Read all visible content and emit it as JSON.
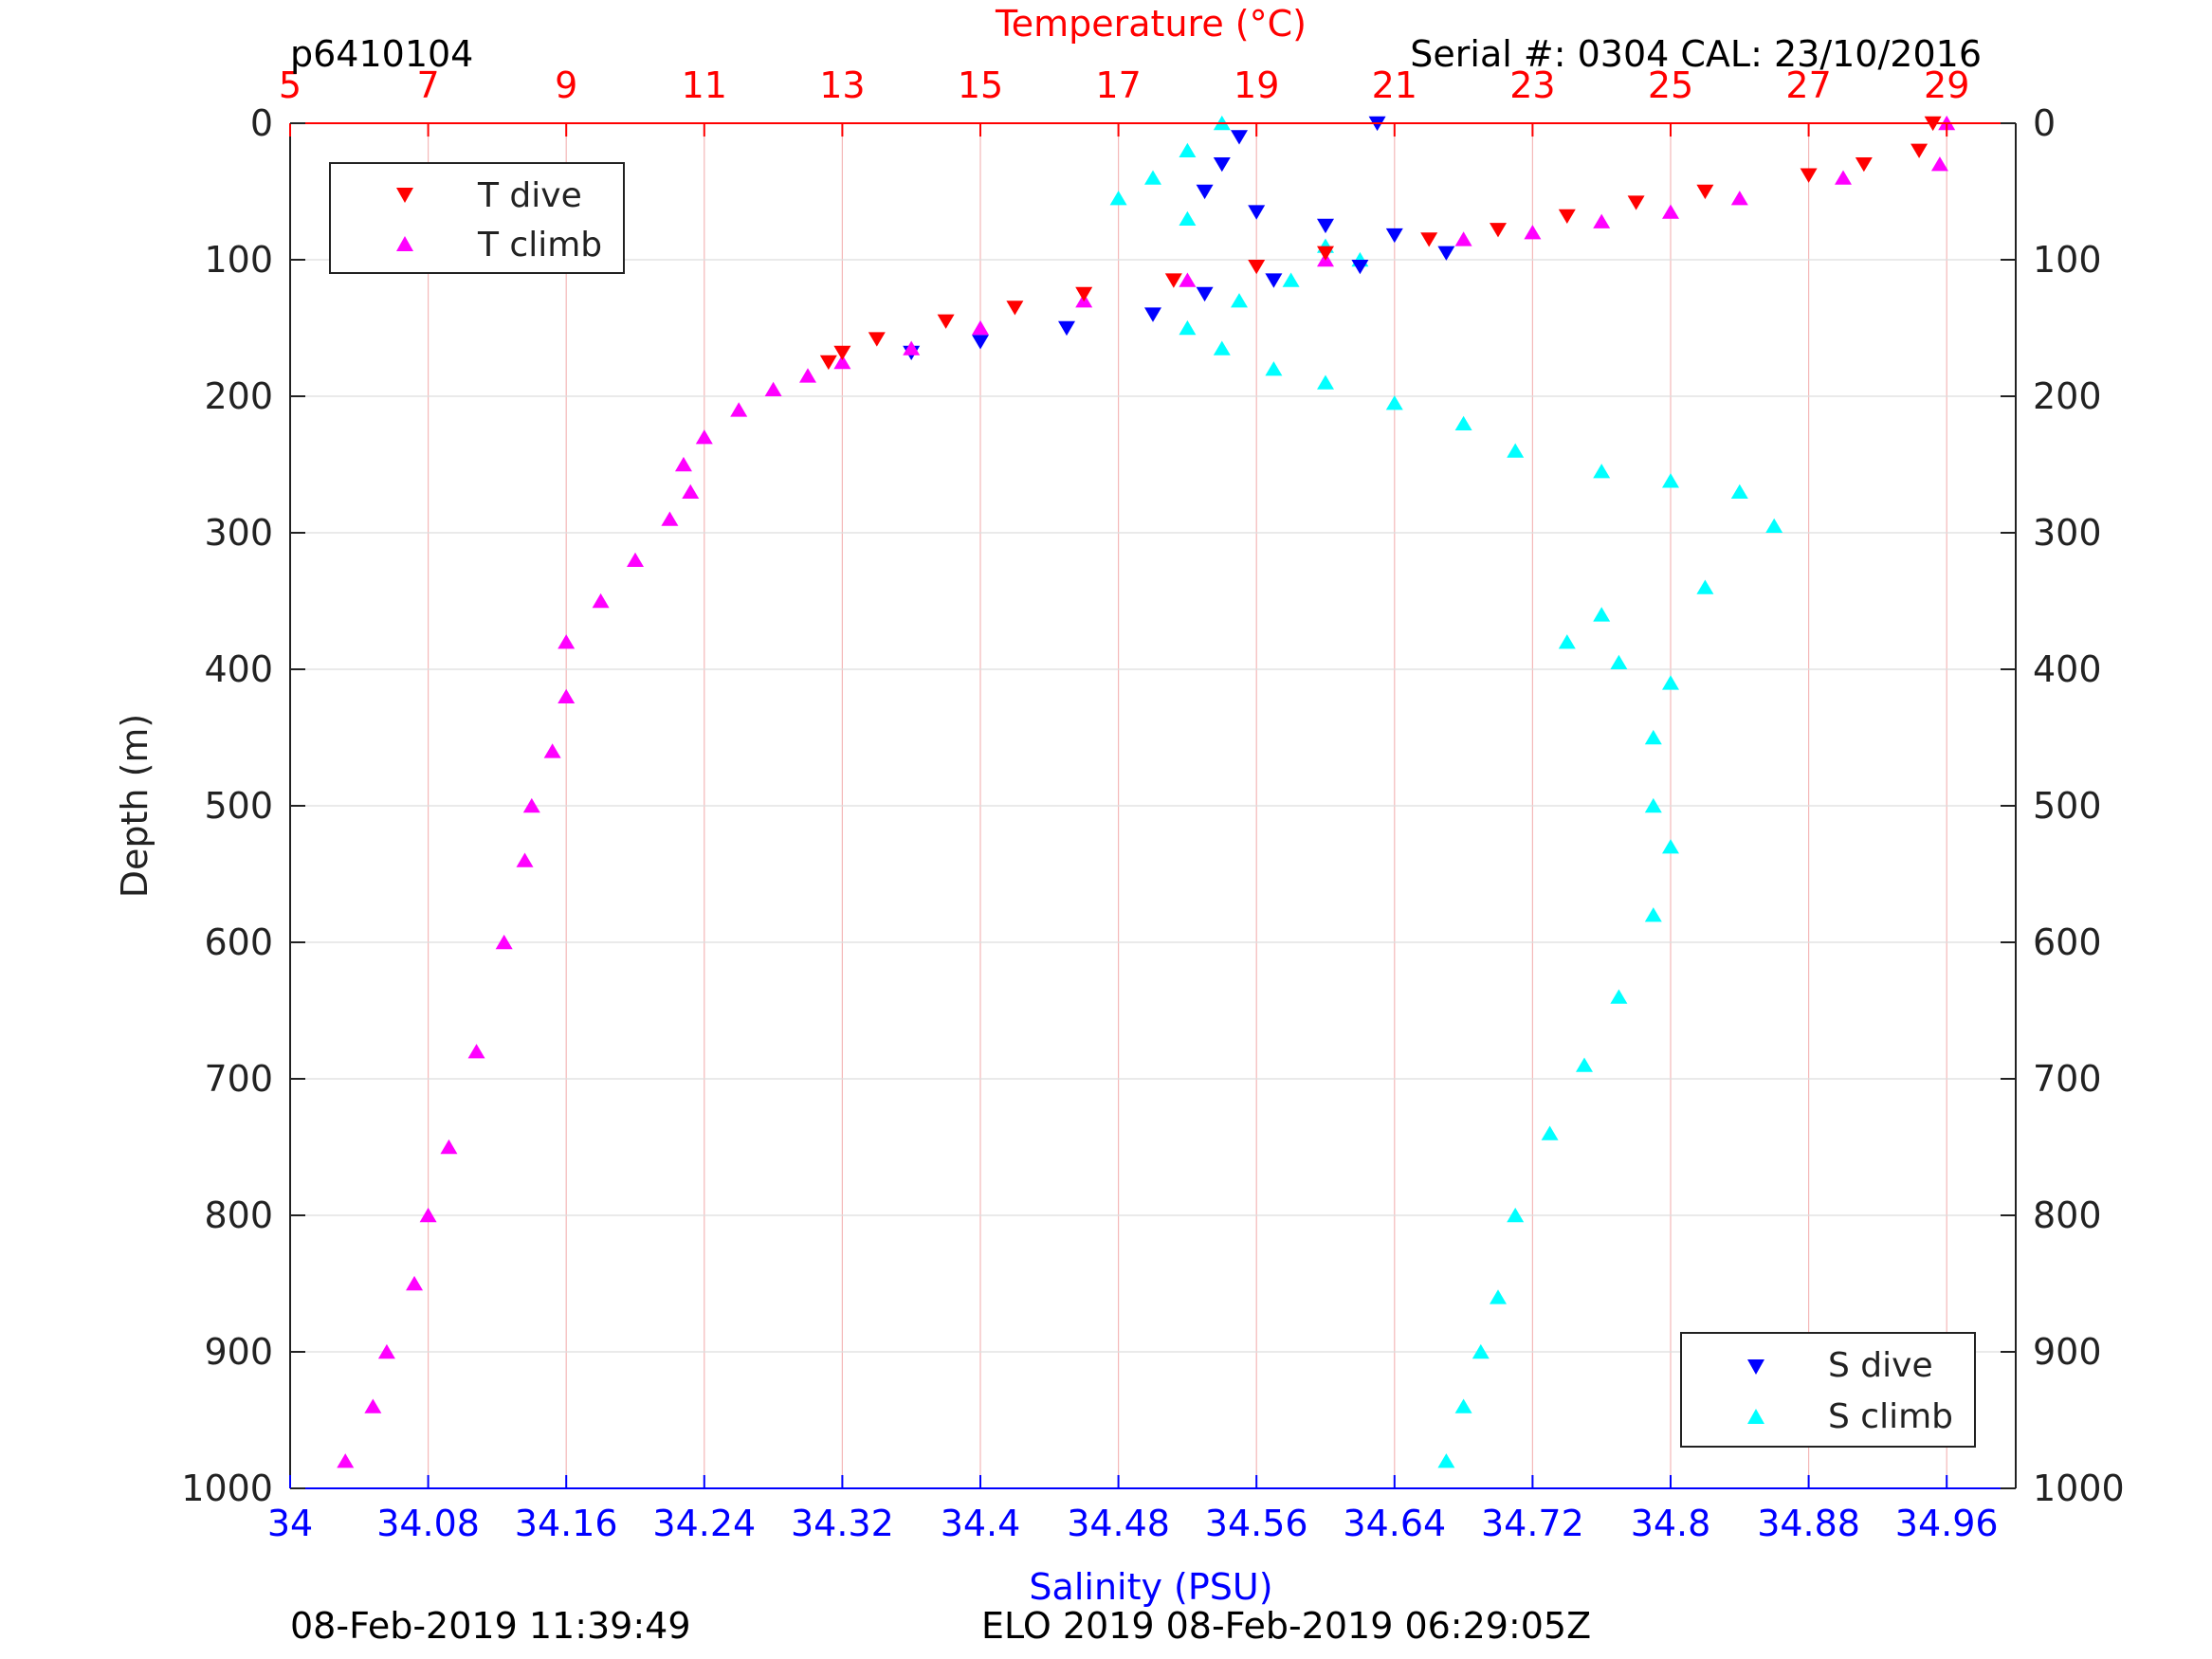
{
  "header": {
    "profile_id": "p6410104",
    "serial": "Serial #: 0304  CAL: 23/10/2016"
  },
  "footer": {
    "left_timestamp": "08-Feb-2019 11:39:49",
    "center_text": "ELO 2019 08-Feb-2019 06:29:05Z"
  },
  "colors": {
    "t_dive": "#ff0000",
    "t_climb": "#ff00ff",
    "s_dive": "#0000ff",
    "s_climb": "#00ffff",
    "temp_axis": "#ff0000",
    "sal_axis": "#0000ff",
    "temp_grid": "#f4b8b8",
    "depth_grid": "#dddddd"
  },
  "chart_data": {
    "type": "scatter",
    "y_axis": {
      "label": "Depth (m)",
      "range": [
        0,
        1000
      ],
      "reversed": true,
      "ticks": [
        0,
        100,
        200,
        300,
        400,
        500,
        600,
        700,
        800,
        900,
        1000
      ]
    },
    "x_axis_top": {
      "label": "Temperature (°C)",
      "range": [
        5,
        30
      ],
      "ticks": [
        5,
        7,
        9,
        11,
        13,
        15,
        17,
        19,
        21,
        23,
        25,
        27,
        29
      ]
    },
    "x_axis_bottom": {
      "label": "Salinity (PSU)",
      "range": [
        34,
        35
      ],
      "ticks": [
        34,
        34.08,
        34.16,
        34.24,
        34.32,
        34.4,
        34.48,
        34.56,
        34.64,
        34.72,
        34.8,
        34.88,
        34.96
      ]
    },
    "grid": "on",
    "legends": [
      {
        "position": "top-left",
        "entries": [
          "T dive",
          "T climb"
        ]
      },
      {
        "position": "bottom-right",
        "entries": [
          "S dive",
          "S climb"
        ]
      }
    ],
    "series": [
      {
        "name": "T dive",
        "axis": "temperature",
        "marker": "triangle-down",
        "points": [
          [
            28.8,
            0
          ],
          [
            28.6,
            20
          ],
          [
            27.8,
            30
          ],
          [
            27,
            38
          ],
          [
            25.5,
            50
          ],
          [
            24.5,
            58
          ],
          [
            23.5,
            68
          ],
          [
            22.5,
            78
          ],
          [
            21.5,
            85
          ],
          [
            20,
            95
          ],
          [
            19,
            105
          ],
          [
            17.8,
            115
          ],
          [
            16.5,
            125
          ],
          [
            15.5,
            135
          ],
          [
            14.5,
            145
          ],
          [
            13.5,
            158
          ],
          [
            13,
            168
          ],
          [
            12.8,
            175
          ]
        ]
      },
      {
        "name": "T climb",
        "axis": "temperature",
        "marker": "triangle-up",
        "points": [
          [
            29,
            0
          ],
          [
            28.9,
            30
          ],
          [
            27.5,
            40
          ],
          [
            26,
            55
          ],
          [
            25,
            65
          ],
          [
            24,
            72
          ],
          [
            23,
            80
          ],
          [
            22,
            85
          ],
          [
            20,
            100
          ],
          [
            18,
            115
          ],
          [
            16.5,
            130
          ],
          [
            15,
            150
          ],
          [
            14,
            165
          ],
          [
            13,
            175
          ],
          [
            12.5,
            185
          ],
          [
            12,
            195
          ],
          [
            11.5,
            210
          ],
          [
            11,
            230
          ],
          [
            10.7,
            250
          ],
          [
            10.8,
            270
          ],
          [
            10.5,
            290
          ],
          [
            10,
            320
          ],
          [
            9.5,
            350
          ],
          [
            9,
            380
          ],
          [
            9,
            420
          ],
          [
            8.8,
            460
          ],
          [
            8.5,
            500
          ],
          [
            8.4,
            540
          ],
          [
            8.1,
            600
          ],
          [
            7.7,
            680
          ],
          [
            7.3,
            750
          ],
          [
            7,
            800
          ],
          [
            6.8,
            850
          ],
          [
            6.4,
            900
          ],
          [
            6.2,
            940
          ],
          [
            5.8,
            980
          ]
        ]
      },
      {
        "name": "S dive",
        "axis": "salinity",
        "marker": "triangle-down",
        "points": [
          [
            34.63,
            0
          ],
          [
            34.55,
            10
          ],
          [
            34.54,
            30
          ],
          [
            34.53,
            50
          ],
          [
            34.56,
            65
          ],
          [
            34.6,
            75
          ],
          [
            34.64,
            82
          ],
          [
            34.67,
            95
          ],
          [
            34.62,
            105
          ],
          [
            34.57,
            115
          ],
          [
            34.53,
            125
          ],
          [
            34.5,
            140
          ],
          [
            34.45,
            150
          ],
          [
            34.4,
            160
          ],
          [
            34.36,
            168
          ]
        ]
      },
      {
        "name": "S climb",
        "axis": "salinity",
        "marker": "triangle-up",
        "points": [
          [
            34.54,
            0
          ],
          [
            34.52,
            20
          ],
          [
            34.5,
            40
          ],
          [
            34.48,
            55
          ],
          [
            34.52,
            70
          ],
          [
            34.6,
            90
          ],
          [
            34.62,
            100
          ],
          [
            34.58,
            115
          ],
          [
            34.55,
            130
          ],
          [
            34.52,
            150
          ],
          [
            34.54,
            165
          ],
          [
            34.57,
            180
          ],
          [
            34.6,
            190
          ],
          [
            34.64,
            205
          ],
          [
            34.68,
            220
          ],
          [
            34.71,
            240
          ],
          [
            34.76,
            255
          ],
          [
            34.8,
            262
          ],
          [
            34.84,
            270
          ],
          [
            34.86,
            295
          ],
          [
            34.82,
            340
          ],
          [
            34.76,
            360
          ],
          [
            34.74,
            380
          ],
          [
            34.77,
            395
          ],
          [
            34.8,
            410
          ],
          [
            34.79,
            450
          ],
          [
            34.79,
            500
          ],
          [
            34.8,
            530
          ],
          [
            34.79,
            580
          ],
          [
            34.77,
            640
          ],
          [
            34.75,
            690
          ],
          [
            34.73,
            740
          ],
          [
            34.71,
            800
          ],
          [
            34.7,
            860
          ],
          [
            34.69,
            900
          ],
          [
            34.68,
            940
          ],
          [
            34.67,
            980
          ]
        ]
      }
    ]
  }
}
